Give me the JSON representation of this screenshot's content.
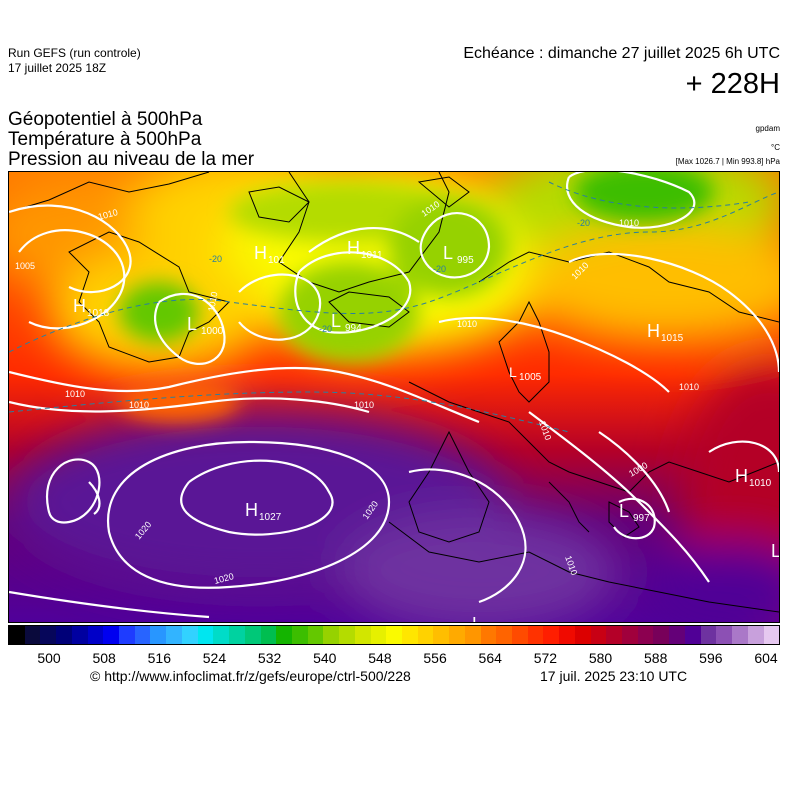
{
  "run": {
    "model": "Run GEFS (run controle)",
    "date": "17 juillet 2025 18Z"
  },
  "validity": {
    "text": "Echéance : dimanche 27 juillet 2025 6h UTC",
    "lead": "+ 228H"
  },
  "layers": [
    {
      "label": "Géopotentiel à 500hPa",
      "unit": "gpdam"
    },
    {
      "label": "Température à 500hPa",
      "unit": "°C"
    },
    {
      "label": "Pression au niveau de la mer",
      "unit": "[Max 1026.7 | Min 993.8] hPa"
    }
  ],
  "map": {
    "pressure_centers": [
      {
        "type": "H",
        "value": "1018"
      },
      {
        "type": "L",
        "value": "1000"
      },
      {
        "type": "H",
        "value": "1011"
      },
      {
        "type": "H",
        "value": "101"
      },
      {
        "type": "L",
        "value": "995"
      },
      {
        "type": "L",
        "value": "994"
      },
      {
        "type": "H",
        "value": "1015"
      },
      {
        "type": "L",
        "value": "1005"
      },
      {
        "type": "H",
        "value": "1027"
      },
      {
        "type": "L",
        "value": "997"
      },
      {
        "type": "H",
        "value": "1010"
      },
      {
        "type": "L",
        "value": ""
      },
      {
        "type": "L",
        "value": ""
      }
    ],
    "isobar_labels": [
      "1005",
      "1010",
      "1010",
      "1010",
      "1010",
      "1010",
      "1010",
      "1010",
      "1010",
      "1010",
      "1010",
      "1000",
      "1020",
      "1020",
      "1020",
      "1010",
      "1010"
    ],
    "isotherm_labels": [
      "-20",
      "-20",
      "-20",
      "-20"
    ]
  },
  "colorbar": {
    "ticks": [
      "500",
      "508",
      "516",
      "524",
      "532",
      "540",
      "548",
      "556",
      "564",
      "572",
      "580",
      "588",
      "596",
      "604"
    ],
    "colors": [
      "#000000",
      "#0a0a3c",
      "#06065a",
      "#000078",
      "#0000a0",
      "#0000c8",
      "#0000f0",
      "#1e3cff",
      "#2864ff",
      "#2896ff",
      "#32b4ff",
      "#32d2ff",
      "#00e6f0",
      "#00dcc8",
      "#00d2a0",
      "#00c878",
      "#00be50",
      "#14b400",
      "#3cbe00",
      "#64c800",
      "#96d200",
      "#b4dc00",
      "#d2e600",
      "#e6f000",
      "#fafa00",
      "#ffe600",
      "#ffd200",
      "#ffbe00",
      "#ffaa00",
      "#ff9600",
      "#ff7800",
      "#ff6400",
      "#ff4b00",
      "#ff3200",
      "#ff1e00",
      "#f00a00",
      "#dc0000",
      "#c80014",
      "#b40028",
      "#a0003c",
      "#8c0050",
      "#78005a",
      "#640078",
      "#500096",
      "#6e32a0",
      "#8c50b4",
      "#aa78c8",
      "#c8a0dc",
      "#e6c8f0"
    ]
  },
  "footer": {
    "url": "© http://www.infoclimat.fr/z/gefs/europe/ctrl-500/228",
    "timestamp": "17 juil. 2025 23:10 UTC"
  }
}
